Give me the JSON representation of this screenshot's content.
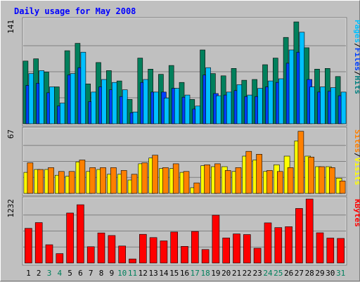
{
  "chart_data": {
    "type": "bar",
    "title": "Daily usage for May 2008",
    "days": [
      "1",
      "2",
      "3",
      "4",
      "5",
      "6",
      "7",
      "8",
      "9",
      "10",
      "11",
      "12",
      "13",
      "14",
      "15",
      "16",
      "17",
      "18",
      "19",
      "20",
      "21",
      "22",
      "23",
      "24",
      "25",
      "26",
      "27",
      "28",
      "29",
      "30",
      "31"
    ],
    "weekend_days": [
      "3",
      "4",
      "10",
      "11",
      "17",
      "18",
      "24",
      "25",
      "31"
    ],
    "panels": [
      {
        "name": "traffic",
        "ymax_label": "141",
        "ylim": [
          0,
          141
        ],
        "right_label_parts": [
          "Pages",
          "Files",
          "Hits"
        ],
        "right_label_colors": [
          "#00c0ff",
          "#0040ff",
          "#008080"
        ],
        "series": [
          {
            "name": "Hits",
            "color": "#00805c",
            "values": [
              85,
              88,
              70,
              50,
              99,
              109,
              54,
              83,
              72,
              58,
              33,
              89,
              74,
              67,
              79,
              56,
              33,
              100,
              68,
              65,
              75,
              59,
              60,
              80,
              89,
              117,
              138,
              103,
              74,
              75,
              64
            ]
          },
          {
            "name": "Files",
            "color": "#0040ff",
            "values": [
              52,
              55,
              42,
              24,
              66,
              76,
              30,
              50,
              46,
              37,
              15,
              56,
              43,
              43,
              48,
              36,
              20,
              66,
              41,
              39,
              45,
              37,
              37,
              50,
              56,
              82,
              97,
              60,
              43,
              44,
              38
            ]
          },
          {
            "name": "Pages",
            "color": "#00c0ff",
            "values": [
              68,
              72,
              50,
              28,
              68,
              97,
              43,
              60,
              56,
              46,
              16,
              60,
              43,
              35,
              48,
              39,
              24,
              76,
              38,
              43,
              53,
              39,
              48,
              58,
              61,
              100,
              124,
              50,
              50,
              49,
              43
            ]
          }
        ]
      },
      {
        "name": "visits",
        "ymax_label": "67",
        "ylim": [
          0,
          67
        ],
        "right_label_parts": [
          "Sites",
          "Visits"
        ],
        "right_label_colors": [
          "#ff8000",
          "#ffff00"
        ],
        "series": [
          {
            "name": "Visits",
            "color": "#ffff00",
            "values": [
              22,
              25,
              25,
              19,
              18,
              33,
              23,
              25,
              20,
              20,
              14,
              31,
              37,
              26,
              26,
              22,
              6,
              29,
              28,
              28,
              23,
              39,
              35,
              23,
              30,
              39,
              55,
              39,
              28,
              28,
              16
            ]
          },
          {
            "name": "Sites",
            "color": "#ff8000",
            "values": [
              32,
              25,
              27,
              23,
              23,
              35,
              27,
              27,
              27,
              24,
              20,
              32,
              40,
              27,
              31,
              23,
              11,
              30,
              31,
              24,
              27,
              44,
              41,
              24,
              23,
              27,
              65,
              38,
              28,
              27,
              13
            ]
          }
        ]
      },
      {
        "name": "kbytes",
        "ymax_label": "1232",
        "ylim": [
          0,
          1232
        ],
        "right_label_parts": [
          "KBytes"
        ],
        "right_label_colors": [
          "#ff0000"
        ],
        "series": [
          {
            "name": "KBytes",
            "color": "#ff0000",
            "values": [
              668,
              779,
              352,
              182,
              962,
              1122,
              314,
              580,
              530,
              328,
              78,
              553,
              490,
              426,
              597,
              321,
              608,
              260,
              920,
              484,
              560,
              548,
              284,
              773,
              683,
              700,
              1050,
              1232,
              582,
              480,
              474
            ]
          }
        ]
      }
    ]
  }
}
